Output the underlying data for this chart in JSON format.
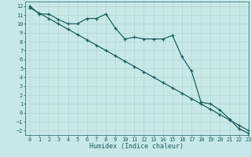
{
  "xlabel": "Humidex (Indice chaleur)",
  "bg_color": "#c8e8e8",
  "grid_color": "#b0d8d0",
  "line_color": "#1a6060",
  "xlim": [
    -0.5,
    23
  ],
  "ylim": [
    -2.5,
    12.5
  ],
  "xticks": [
    0,
    1,
    2,
    3,
    4,
    5,
    6,
    7,
    8,
    9,
    10,
    11,
    12,
    13,
    14,
    15,
    16,
    17,
    18,
    19,
    20,
    21,
    22,
    23
  ],
  "yticks": [
    -2,
    -1,
    0,
    1,
    2,
    3,
    4,
    5,
    6,
    7,
    8,
    9,
    10,
    11,
    12
  ],
  "line1_x": [
    0,
    1,
    2,
    3,
    4,
    5,
    6,
    7,
    8,
    9,
    10,
    11,
    12,
    13,
    14,
    15,
    16,
    17,
    18,
    19,
    20,
    21,
    22,
    23
  ],
  "line1_y": [
    12.0,
    11.1,
    11.1,
    10.5,
    10.0,
    10.0,
    10.6,
    10.6,
    11.1,
    9.5,
    8.3,
    8.5,
    8.3,
    8.3,
    8.3,
    8.7,
    6.3,
    4.7,
    1.2,
    1.0,
    0.3,
    -0.7,
    -1.8,
    -2.3
  ],
  "line2_x": [
    0,
    1,
    2,
    3,
    4,
    5,
    6,
    7,
    8,
    9,
    10,
    11,
    12,
    13,
    14,
    15,
    16,
    17,
    18,
    19,
    20,
    21,
    22,
    23
  ],
  "line2_y": [
    11.8,
    11.2,
    10.6,
    10.0,
    9.4,
    8.8,
    8.2,
    7.6,
    7.0,
    6.4,
    5.8,
    5.2,
    4.6,
    4.0,
    3.4,
    2.8,
    2.2,
    1.6,
    1.0,
    0.4,
    -0.2,
    -0.8,
    -1.4,
    -2.0
  ]
}
